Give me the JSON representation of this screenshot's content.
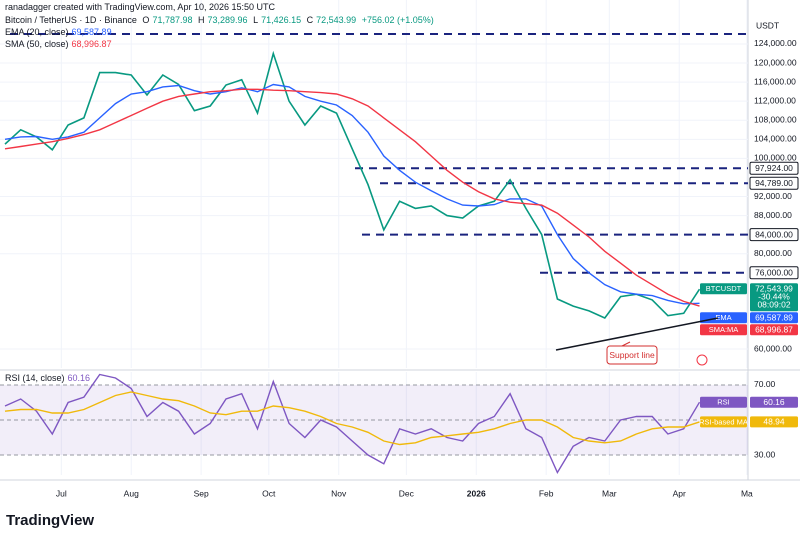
{
  "header": {
    "credit": "ranadagger created with TradingView.com, Apr 10, 2026 15:50 UTC",
    "symbol": "Bitcoin / TetherUS · 1D · Binance",
    "ohlc": [
      {
        "key": "O",
        "value": "71,787.98"
      },
      {
        "key": "H",
        "value": "73,289.96"
      },
      {
        "key": "L",
        "value": "71,426.15"
      },
      {
        "key": "C",
        "value": "72,543.99"
      }
    ],
    "change": "+756.02 (+1.05%)",
    "ema_legend": "EMA (20, close)",
    "sma_legend": "SMA (50, close)",
    "rsi_legend": "RSI (14, close)",
    "currency": "USDT"
  },
  "footer": {
    "logo": "TradingView"
  },
  "chart_data": [
    {
      "type": "line",
      "x": [
        0,
        7,
        14,
        21,
        28,
        35,
        42,
        49,
        56,
        63,
        70,
        77,
        84,
        91,
        98,
        105,
        112,
        119,
        126,
        133,
        140,
        147,
        154,
        161,
        168,
        175,
        182,
        189,
        196,
        203,
        210,
        217,
        224,
        231,
        238,
        245,
        252,
        259,
        266,
        273,
        280,
        287,
        294,
        301,
        308
      ],
      "xlim": [
        -2.2,
        329.5
      ],
      "xticks": [
        {
          "value": 25,
          "label": "Jul"
        },
        {
          "value": 56,
          "label": "Aug"
        },
        {
          "value": 87,
          "label": "Sep"
        },
        {
          "value": 117,
          "label": "Oct"
        },
        {
          "value": 148,
          "label": "Nov"
        },
        {
          "value": 178,
          "label": "Dec"
        },
        {
          "value": 209,
          "label": "2026"
        },
        {
          "value": 240,
          "label": "Feb"
        },
        {
          "value": 268,
          "label": "Mar"
        },
        {
          "value": 299,
          "label": "Apr"
        },
        {
          "value": 329,
          "label": "Ma"
        }
      ],
      "ylim": [
        56020,
        133230
      ],
      "yticks": [
        {
          "value": 124000,
          "label": "124,000.00"
        },
        {
          "value": 120000,
          "label": "120,000.00"
        },
        {
          "value": 116000,
          "label": "116,000.00"
        },
        {
          "value": 112000,
          "label": "112,000.00"
        },
        {
          "value": 108000,
          "label": "108,000.00"
        },
        {
          "value": 104000,
          "label": "104,000.00"
        },
        {
          "value": 100000,
          "label": "100,000.00"
        },
        {
          "value": 92000,
          "label": "92,000.00"
        },
        {
          "value": 88000,
          "label": "88,000.00"
        },
        {
          "value": 80000,
          "label": "80,000.00"
        },
        {
          "value": 60000,
          "label": "60,000.00"
        }
      ],
      "grid": true,
      "levels": [
        {
          "value": 126100
        },
        {
          "value": 97924,
          "label": "97,924.00"
        },
        {
          "value": 94789,
          "label": "94,789.00"
        },
        {
          "value": 84000,
          "label": "84,000.00"
        },
        {
          "value": 76000,
          "label": "76,000.00"
        }
      ],
      "annotation": "Support line",
      "price_change": "-30.44%",
      "countdown": "08:09:02",
      "series": [
        {
          "name": "BTCUSDT",
          "color": "#089981",
          "values": [
            103000,
            106000,
            104500,
            101800,
            107000,
            108500,
            118000,
            118000,
            117500,
            113300,
            117500,
            115500,
            110000,
            111000,
            115400,
            116500,
            109500,
            122000,
            112000,
            107000,
            111000,
            109500,
            102000,
            94500,
            85000,
            91000,
            89500,
            90000,
            88000,
            87500,
            90000,
            91000,
            95500,
            89500,
            84000,
            70500,
            69000,
            68000,
            66500,
            71000,
            71500,
            70300,
            67000,
            67500,
            72543.99
          ],
          "value_labels": [
            null,
            null,
            null,
            null,
            null,
            null,
            null,
            null,
            null,
            null,
            null,
            null,
            null,
            null,
            null,
            null,
            null,
            null,
            null,
            null,
            null,
            null,
            null,
            null,
            null,
            null,
            null,
            null,
            null,
            null,
            null,
            null,
            null,
            null,
            null,
            null,
            null,
            null,
            null,
            null,
            null,
            null,
            null,
            null,
            "72,543.99"
          ]
        },
        {
          "name": "EMA",
          "color": "#2962ff",
          "values": [
            104000,
            104500,
            104600,
            104000,
            104500,
            105500,
            108500,
            111500,
            113500,
            114000,
            115000,
            115300,
            114200,
            113500,
            114000,
            114800,
            114000,
            115500,
            115000,
            113000,
            112000,
            111200,
            109000,
            105500,
            100500,
            97500,
            95000,
            93200,
            91500,
            90200,
            90000,
            90300,
            91500,
            91500,
            90000,
            84000,
            79000,
            76000,
            73500,
            72000,
            71500,
            71200,
            70200,
            69500,
            69587.89
          ],
          "value_labels": [
            null,
            null,
            null,
            null,
            null,
            null,
            null,
            null,
            null,
            null,
            null,
            null,
            null,
            null,
            null,
            null,
            null,
            null,
            null,
            null,
            null,
            null,
            null,
            null,
            null,
            null,
            null,
            null,
            null,
            null,
            null,
            null,
            null,
            null,
            null,
            null,
            null,
            null,
            null,
            null,
            null,
            null,
            null,
            null,
            "69,587.89"
          ]
        },
        {
          "name": "SMA:MA",
          "color": "#f23645",
          "values": [
            102000,
            102500,
            103000,
            103500,
            104200,
            105000,
            106000,
            107500,
            109000,
            110500,
            112000,
            113000,
            113500,
            114000,
            114200,
            114500,
            114500,
            114300,
            114200,
            114000,
            113800,
            113500,
            112500,
            111000,
            108500,
            106000,
            103500,
            100500,
            97500,
            95000,
            93000,
            91500,
            90800,
            90500,
            90200,
            88500,
            86000,
            83500,
            80500,
            78000,
            75500,
            73500,
            71500,
            70000,
            68996.87
          ],
          "value_labels": [
            null,
            null,
            null,
            null,
            null,
            null,
            null,
            null,
            null,
            null,
            null,
            null,
            null,
            null,
            null,
            null,
            null,
            null,
            null,
            null,
            null,
            null,
            null,
            null,
            null,
            null,
            null,
            null,
            null,
            null,
            null,
            null,
            null,
            null,
            null,
            null,
            null,
            null,
            null,
            null,
            null,
            null,
            null,
            null,
            "68,996.87"
          ]
        }
      ]
    },
    {
      "type": "line",
      "x": [
        0,
        7,
        14,
        21,
        28,
        35,
        42,
        49,
        56,
        63,
        70,
        77,
        84,
        91,
        98,
        105,
        112,
        119,
        126,
        133,
        140,
        147,
        154,
        161,
        168,
        175,
        182,
        189,
        196,
        203,
        210,
        217,
        224,
        231,
        238,
        245,
        252,
        259,
        266,
        273,
        280,
        287,
        294,
        301,
        308
      ],
      "xlim": [
        -2.2,
        329.5
      ],
      "ylim": [
        18.6,
        77.4
      ],
      "yticks": [
        {
          "value": 70,
          "label": "70.00"
        },
        {
          "value": 30,
          "label": "30.00"
        }
      ],
      "series": [
        {
          "name": "RSI",
          "color": "#7e57c2",
          "values": [
            58,
            62,
            55,
            42,
            60,
            63,
            76,
            74,
            68,
            52,
            60,
            55,
            42,
            48,
            62,
            65,
            45,
            72,
            48,
            40,
            50,
            46,
            38,
            30,
            25,
            45,
            42,
            45,
            40,
            38,
            48,
            52,
            65,
            45,
            40,
            20,
            35,
            40,
            38,
            50,
            52,
            52,
            42,
            45,
            60.16
          ]
        },
        {
          "name": "RSI-based MA",
          "color": "#f0b90b",
          "values": [
            55,
            56,
            56,
            54,
            54,
            56,
            60,
            64,
            66,
            64,
            62,
            61,
            58,
            54,
            53,
            55,
            55,
            58,
            57,
            55,
            52,
            48,
            46,
            43,
            38,
            36,
            37,
            40,
            41,
            42,
            43,
            45,
            48,
            50,
            50,
            46,
            40,
            38,
            37,
            38,
            42,
            45,
            46,
            46,
            48.94
          ]
        }
      ]
    }
  ]
}
